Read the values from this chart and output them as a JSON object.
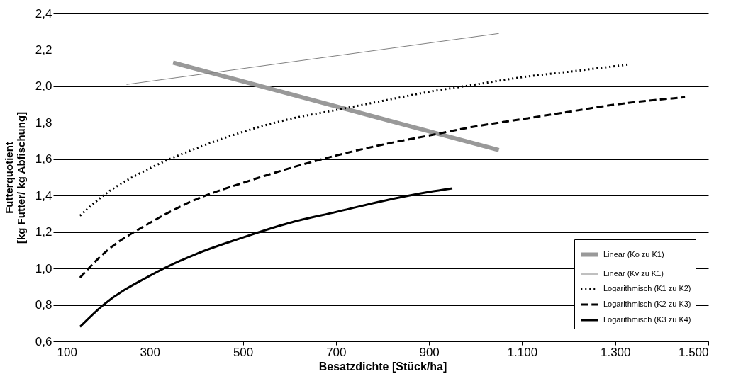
{
  "chart_data": {
    "type": "line",
    "xlabel": "Besatzdichte [Stück/ha]",
    "ylabel": "Futterquotient\n[kg Futter/ kg Abfischung]",
    "xlim": [
      100,
      1500
    ],
    "xticks": [
      {
        "value": 100,
        "label": "100"
      },
      {
        "value": 300,
        "label": "300"
      },
      {
        "value": 500,
        "label": "500"
      },
      {
        "value": 700,
        "label": "700"
      },
      {
        "value": 900,
        "label": "900"
      },
      {
        "value": 1100,
        "label": "1.100"
      },
      {
        "value": 1300,
        "label": "1.300"
      },
      {
        "value": 1500,
        "label": "1.500"
      }
    ],
    "ylim": [
      0.6,
      2.4
    ],
    "yticks": [
      {
        "value": 0.6,
        "label": "0,6"
      },
      {
        "value": 0.8,
        "label": "0,8"
      },
      {
        "value": 1.0,
        "label": "1,0"
      },
      {
        "value": 1.2,
        "label": "1,2"
      },
      {
        "value": 1.4,
        "label": "1,4"
      },
      {
        "value": 1.6,
        "label": "1,6"
      },
      {
        "value": 1.8,
        "label": "1,8"
      },
      {
        "value": 2.0,
        "label": "2,0"
      },
      {
        "value": 2.2,
        "label": "2,2"
      },
      {
        "value": 2.4,
        "label": "2,4"
      }
    ],
    "grid": "y",
    "legend": "bottom right",
    "marker": "none",
    "series": [
      {
        "name": "Linear (Ko zu K1)",
        "color": "#999999",
        "line_style": "solid",
        "x": [
          350,
          1050
        ],
        "values": [
          2.13,
          1.65
        ]
      },
      {
        "name": "Linear (Kv zu K1)",
        "color": "#808080",
        "line_style": "solid",
        "x": [
          250,
          1050
        ],
        "values": [
          2.01,
          2.29
        ]
      },
      {
        "name": "Logarithmisch (K1 zu K2)",
        "color": "#000000",
        "line_style": "dotted",
        "x": [
          150,
          200,
          300,
          400,
          500,
          600,
          700,
          800,
          900,
          1000,
          1100,
          1200,
          1330
        ],
        "values": [
          1.29,
          1.4,
          1.55,
          1.66,
          1.75,
          1.82,
          1.87,
          1.92,
          1.97,
          2.01,
          2.05,
          2.08,
          2.12
        ]
      },
      {
        "name": "Logarithmisch (K2 zu K3)",
        "color": "#000000",
        "line_style": "dashed",
        "x": [
          150,
          200,
          300,
          400,
          500,
          600,
          700,
          800,
          900,
          1000,
          1100,
          1200,
          1300,
          1450
        ],
        "values": [
          0.95,
          1.08,
          1.25,
          1.38,
          1.47,
          1.55,
          1.62,
          1.68,
          1.73,
          1.78,
          1.82,
          1.86,
          1.9,
          1.94
        ]
      },
      {
        "name": "Logarithmisch (K3 zu K4)",
        "color": "#000000",
        "line_style": "solid",
        "x": [
          150,
          200,
          300,
          400,
          500,
          600,
          700,
          800,
          900,
          950
        ],
        "values": [
          0.68,
          0.8,
          0.96,
          1.08,
          1.17,
          1.25,
          1.31,
          1.37,
          1.42,
          1.44
        ]
      }
    ]
  }
}
